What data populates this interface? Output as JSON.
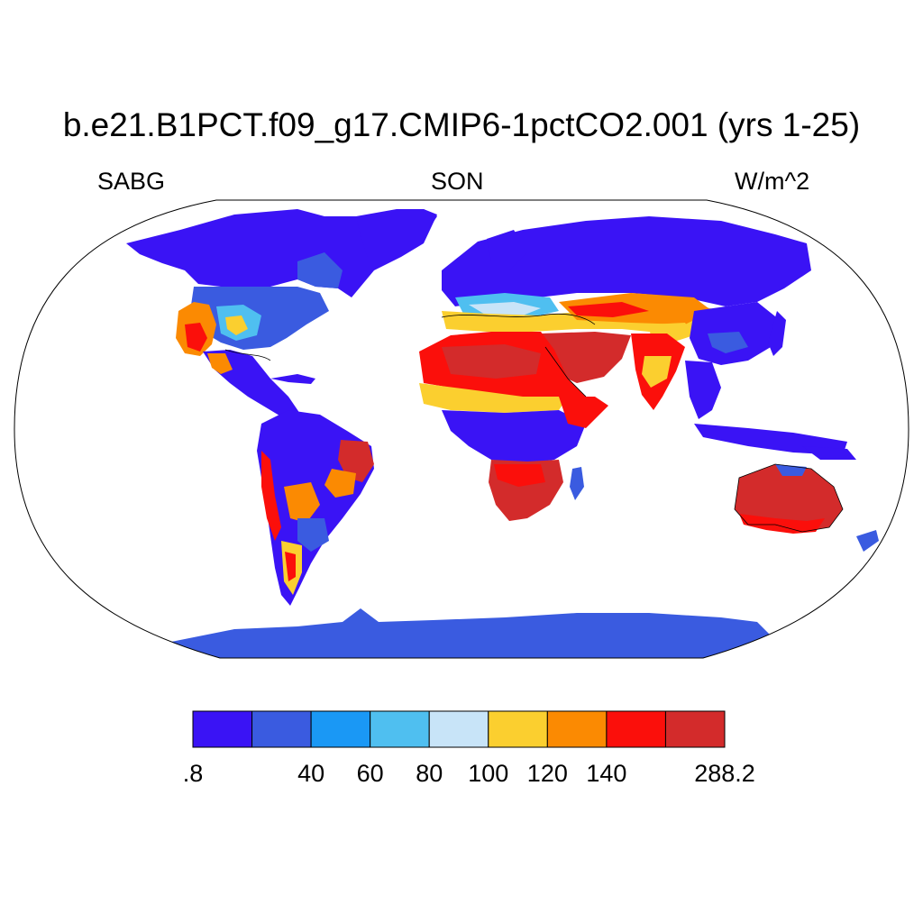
{
  "title": "b.e21.B1PCT.f09_g17.CMIP6-1pctCO2.001 (yrs 1-25)",
  "left_string": "SABG",
  "center_string": "SON",
  "right_string": "W/m^2",
  "colorbar": {
    "colors": [
      "#3a13f5",
      "#3a5be0",
      "#1a98f5",
      "#4fbff0",
      "#c8e4f8",
      "#fbcf2f",
      "#fb8a02",
      "#fb0f0b",
      "#d32b2b"
    ],
    "labels": [
      ".8",
      "40",
      "60",
      "80",
      "100",
      "120",
      "140",
      "288.2"
    ]
  },
  "map": {
    "projection": "Robinson",
    "ocean_color": "#ffffff",
    "land_missing_color": "#ffffff",
    "coastline_color": "#000000"
  }
}
